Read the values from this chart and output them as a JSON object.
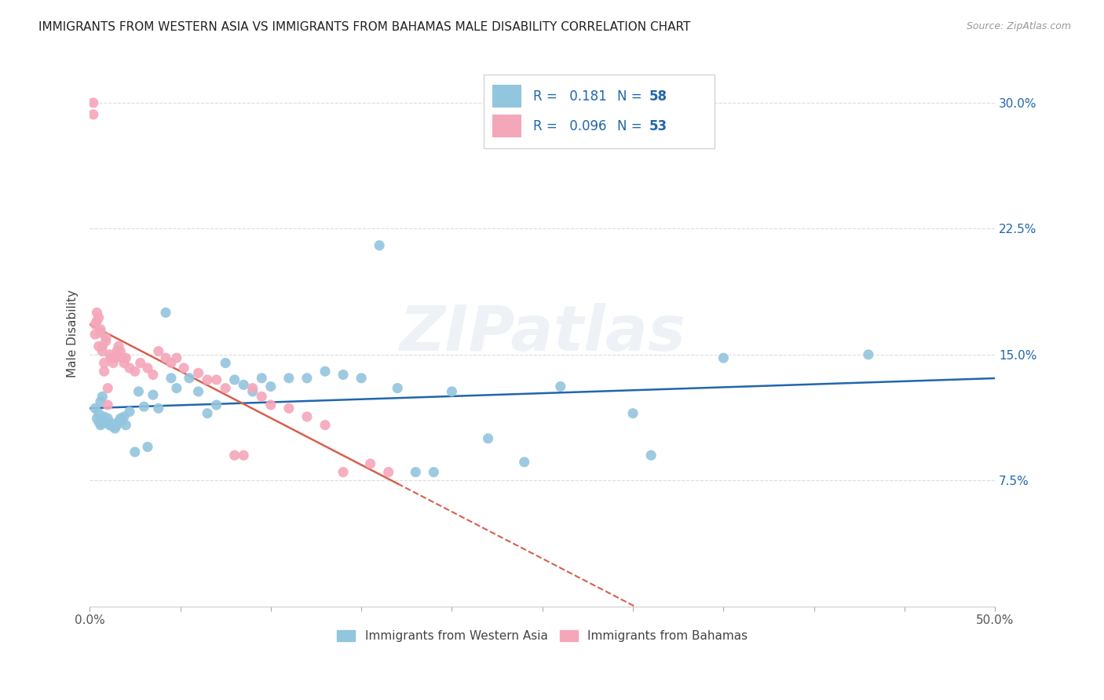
{
  "title": "IMMIGRANTS FROM WESTERN ASIA VS IMMIGRANTS FROM BAHAMAS MALE DISABILITY CORRELATION CHART",
  "source": "Source: ZipAtlas.com",
  "ylabel": "Male Disability",
  "watermark": "ZIPatlas",
  "xlim": [
    0.0,
    0.5
  ],
  "ylim": [
    0.0,
    0.325
  ],
  "xticks": [
    0.0,
    0.05,
    0.1,
    0.15,
    0.2,
    0.25,
    0.3,
    0.35,
    0.4,
    0.45,
    0.5
  ],
  "xticklabels_show": {
    "0.0": "0.0%",
    "0.5": "50.0%"
  },
  "yticks_right": [
    0.075,
    0.15,
    0.225,
    0.3
  ],
  "ytick_labels_right": [
    "7.5%",
    "15.0%",
    "22.5%",
    "30.0%"
  ],
  "legend_label_1": "Immigrants from Western Asia",
  "legend_label_2": "Immigrants from Bahamas",
  "R1": "0.181",
  "N1": "58",
  "R2": "0.096",
  "N2": "53",
  "color_blue": "#92c5de",
  "color_pink": "#f4a7b9",
  "color_blue_line": "#2166ac",
  "color_pink_line": "#d6604d",
  "color_blue_text": "#2166ac",
  "blue_scatter_x": [
    0.003,
    0.004,
    0.005,
    0.005,
    0.006,
    0.006,
    0.007,
    0.007,
    0.008,
    0.009,
    0.01,
    0.011,
    0.012,
    0.013,
    0.014,
    0.015,
    0.016,
    0.017,
    0.018,
    0.019,
    0.02,
    0.022,
    0.025,
    0.027,
    0.03,
    0.032,
    0.035,
    0.038,
    0.042,
    0.045,
    0.048,
    0.055,
    0.06,
    0.065,
    0.07,
    0.075,
    0.08,
    0.085,
    0.09,
    0.095,
    0.1,
    0.11,
    0.12,
    0.13,
    0.14,
    0.15,
    0.16,
    0.17,
    0.18,
    0.19,
    0.2,
    0.22,
    0.24,
    0.26,
    0.3,
    0.31,
    0.35,
    0.43
  ],
  "blue_scatter_y": [
    0.118,
    0.112,
    0.11,
    0.115,
    0.108,
    0.122,
    0.109,
    0.125,
    0.113,
    0.11,
    0.112,
    0.108,
    0.109,
    0.107,
    0.106,
    0.108,
    0.11,
    0.112,
    0.111,
    0.113,
    0.108,
    0.116,
    0.092,
    0.128,
    0.119,
    0.095,
    0.126,
    0.118,
    0.175,
    0.136,
    0.13,
    0.136,
    0.128,
    0.115,
    0.12,
    0.145,
    0.135,
    0.132,
    0.128,
    0.136,
    0.131,
    0.136,
    0.136,
    0.14,
    0.138,
    0.136,
    0.215,
    0.13,
    0.08,
    0.08,
    0.128,
    0.1,
    0.086,
    0.131,
    0.115,
    0.09,
    0.148,
    0.15
  ],
  "pink_scatter_x": [
    0.002,
    0.002,
    0.003,
    0.003,
    0.004,
    0.004,
    0.005,
    0.005,
    0.006,
    0.006,
    0.007,
    0.007,
    0.008,
    0.008,
    0.009,
    0.009,
    0.01,
    0.01,
    0.011,
    0.012,
    0.013,
    0.014,
    0.015,
    0.016,
    0.017,
    0.018,
    0.019,
    0.02,
    0.022,
    0.025,
    0.028,
    0.032,
    0.035,
    0.038,
    0.042,
    0.045,
    0.048,
    0.052,
    0.06,
    0.065,
    0.07,
    0.075,
    0.08,
    0.085,
    0.09,
    0.095,
    0.1,
    0.11,
    0.12,
    0.13,
    0.14,
    0.155,
    0.165
  ],
  "pink_scatter_y": [
    0.3,
    0.293,
    0.168,
    0.162,
    0.175,
    0.17,
    0.172,
    0.155,
    0.165,
    0.163,
    0.155,
    0.152,
    0.145,
    0.14,
    0.16,
    0.158,
    0.12,
    0.13,
    0.15,
    0.148,
    0.145,
    0.148,
    0.152,
    0.155,
    0.152,
    0.148,
    0.145,
    0.148,
    0.142,
    0.14,
    0.145,
    0.142,
    0.138,
    0.152,
    0.148,
    0.145,
    0.148,
    0.142,
    0.139,
    0.135,
    0.135,
    0.13,
    0.09,
    0.09,
    0.13,
    0.125,
    0.12,
    0.118,
    0.113,
    0.108,
    0.08,
    0.085,
    0.08
  ]
}
